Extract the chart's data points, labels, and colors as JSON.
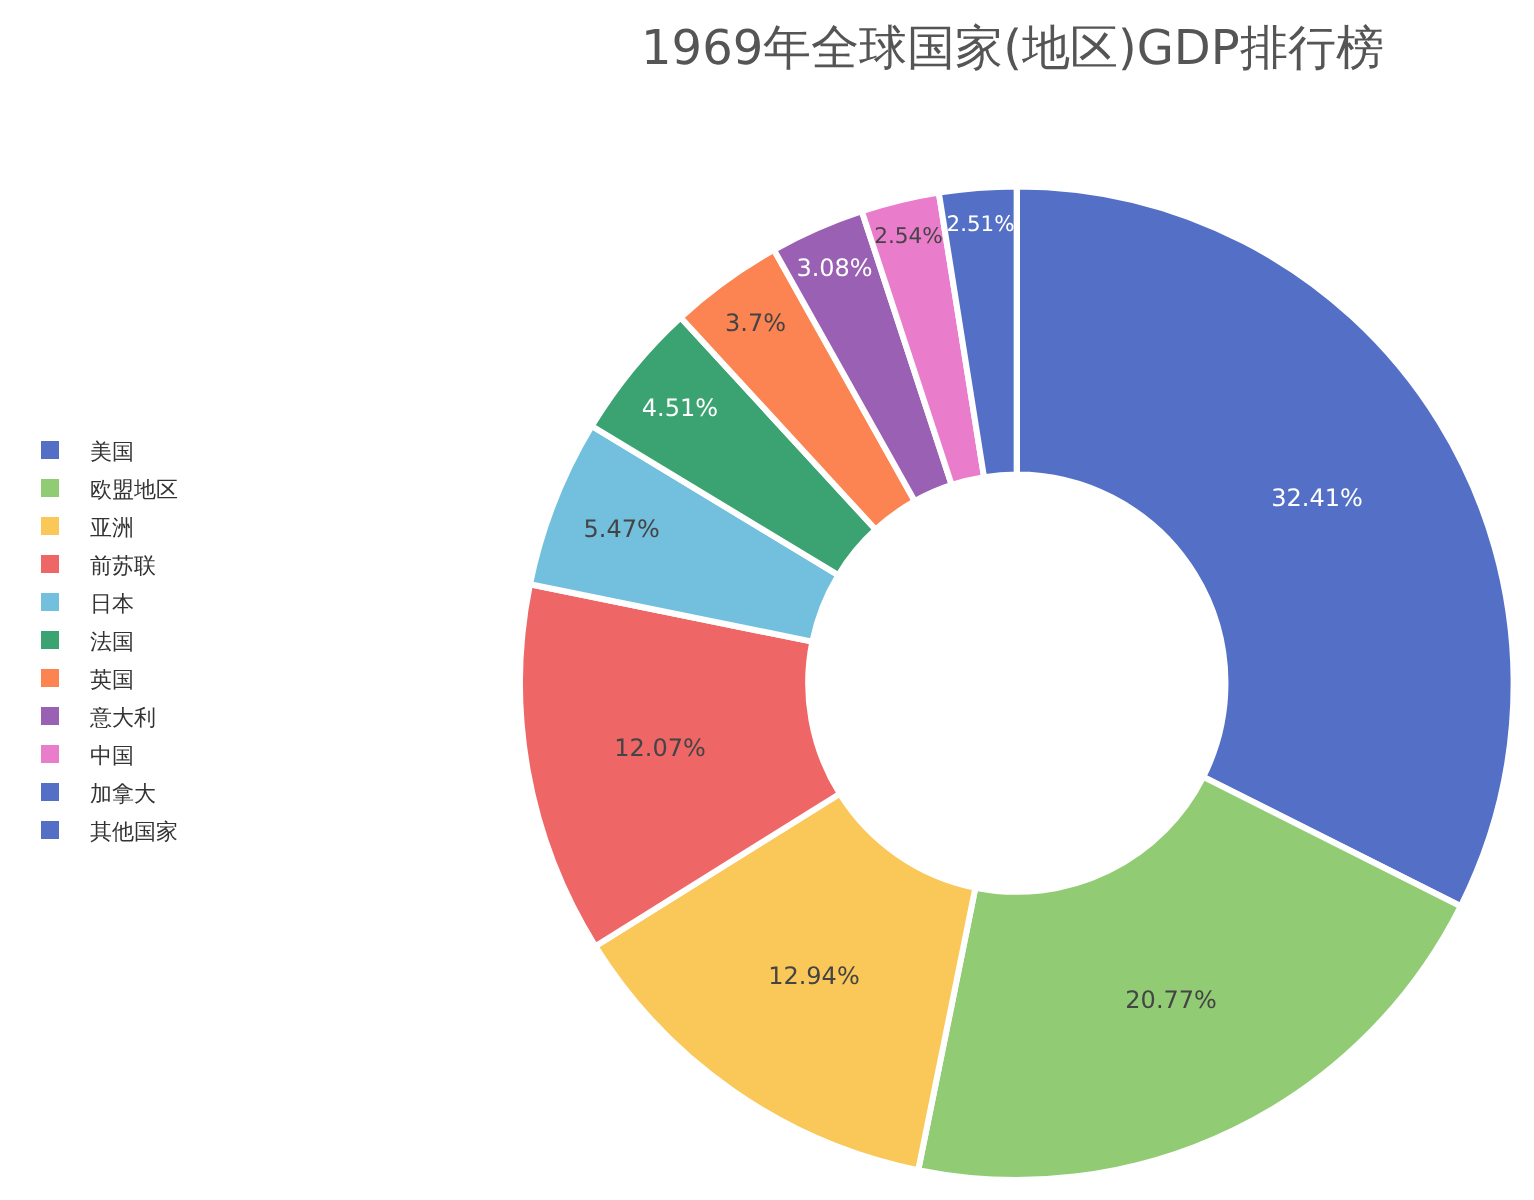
{
  "chart_data": {
    "type": "donut",
    "title": "1969年全球国家(地区)GDP排行榜",
    "categories": [
      "美国",
      "欧盟地区",
      "亚洲",
      "前苏联",
      "日本",
      "法国",
      "英国",
      "意大利",
      "中国",
      "加拿大",
      "其他国家"
    ],
    "values": [
      32.41,
      20.77,
      12.94,
      12.07,
      5.47,
      4.51,
      3.7,
      3.08,
      2.54,
      2.51,
      0
    ],
    "colors": [
      "#5470c6",
      "#91cc75",
      "#fac858",
      "#ee6666",
      "#73c0de",
      "#3ba272",
      "#fc8452",
      "#9a60b4",
      "#ea7ccc",
      "#5470c6",
      "#5470c6"
    ],
    "value_labels": [
      "32.41%",
      "20.77%",
      "12.94%",
      "12.07%",
      "5.47%",
      "4.51%",
      "3.7%",
      "3.08%",
      "2.54%",
      "2.51%",
      null
    ],
    "legend": "left"
  }
}
